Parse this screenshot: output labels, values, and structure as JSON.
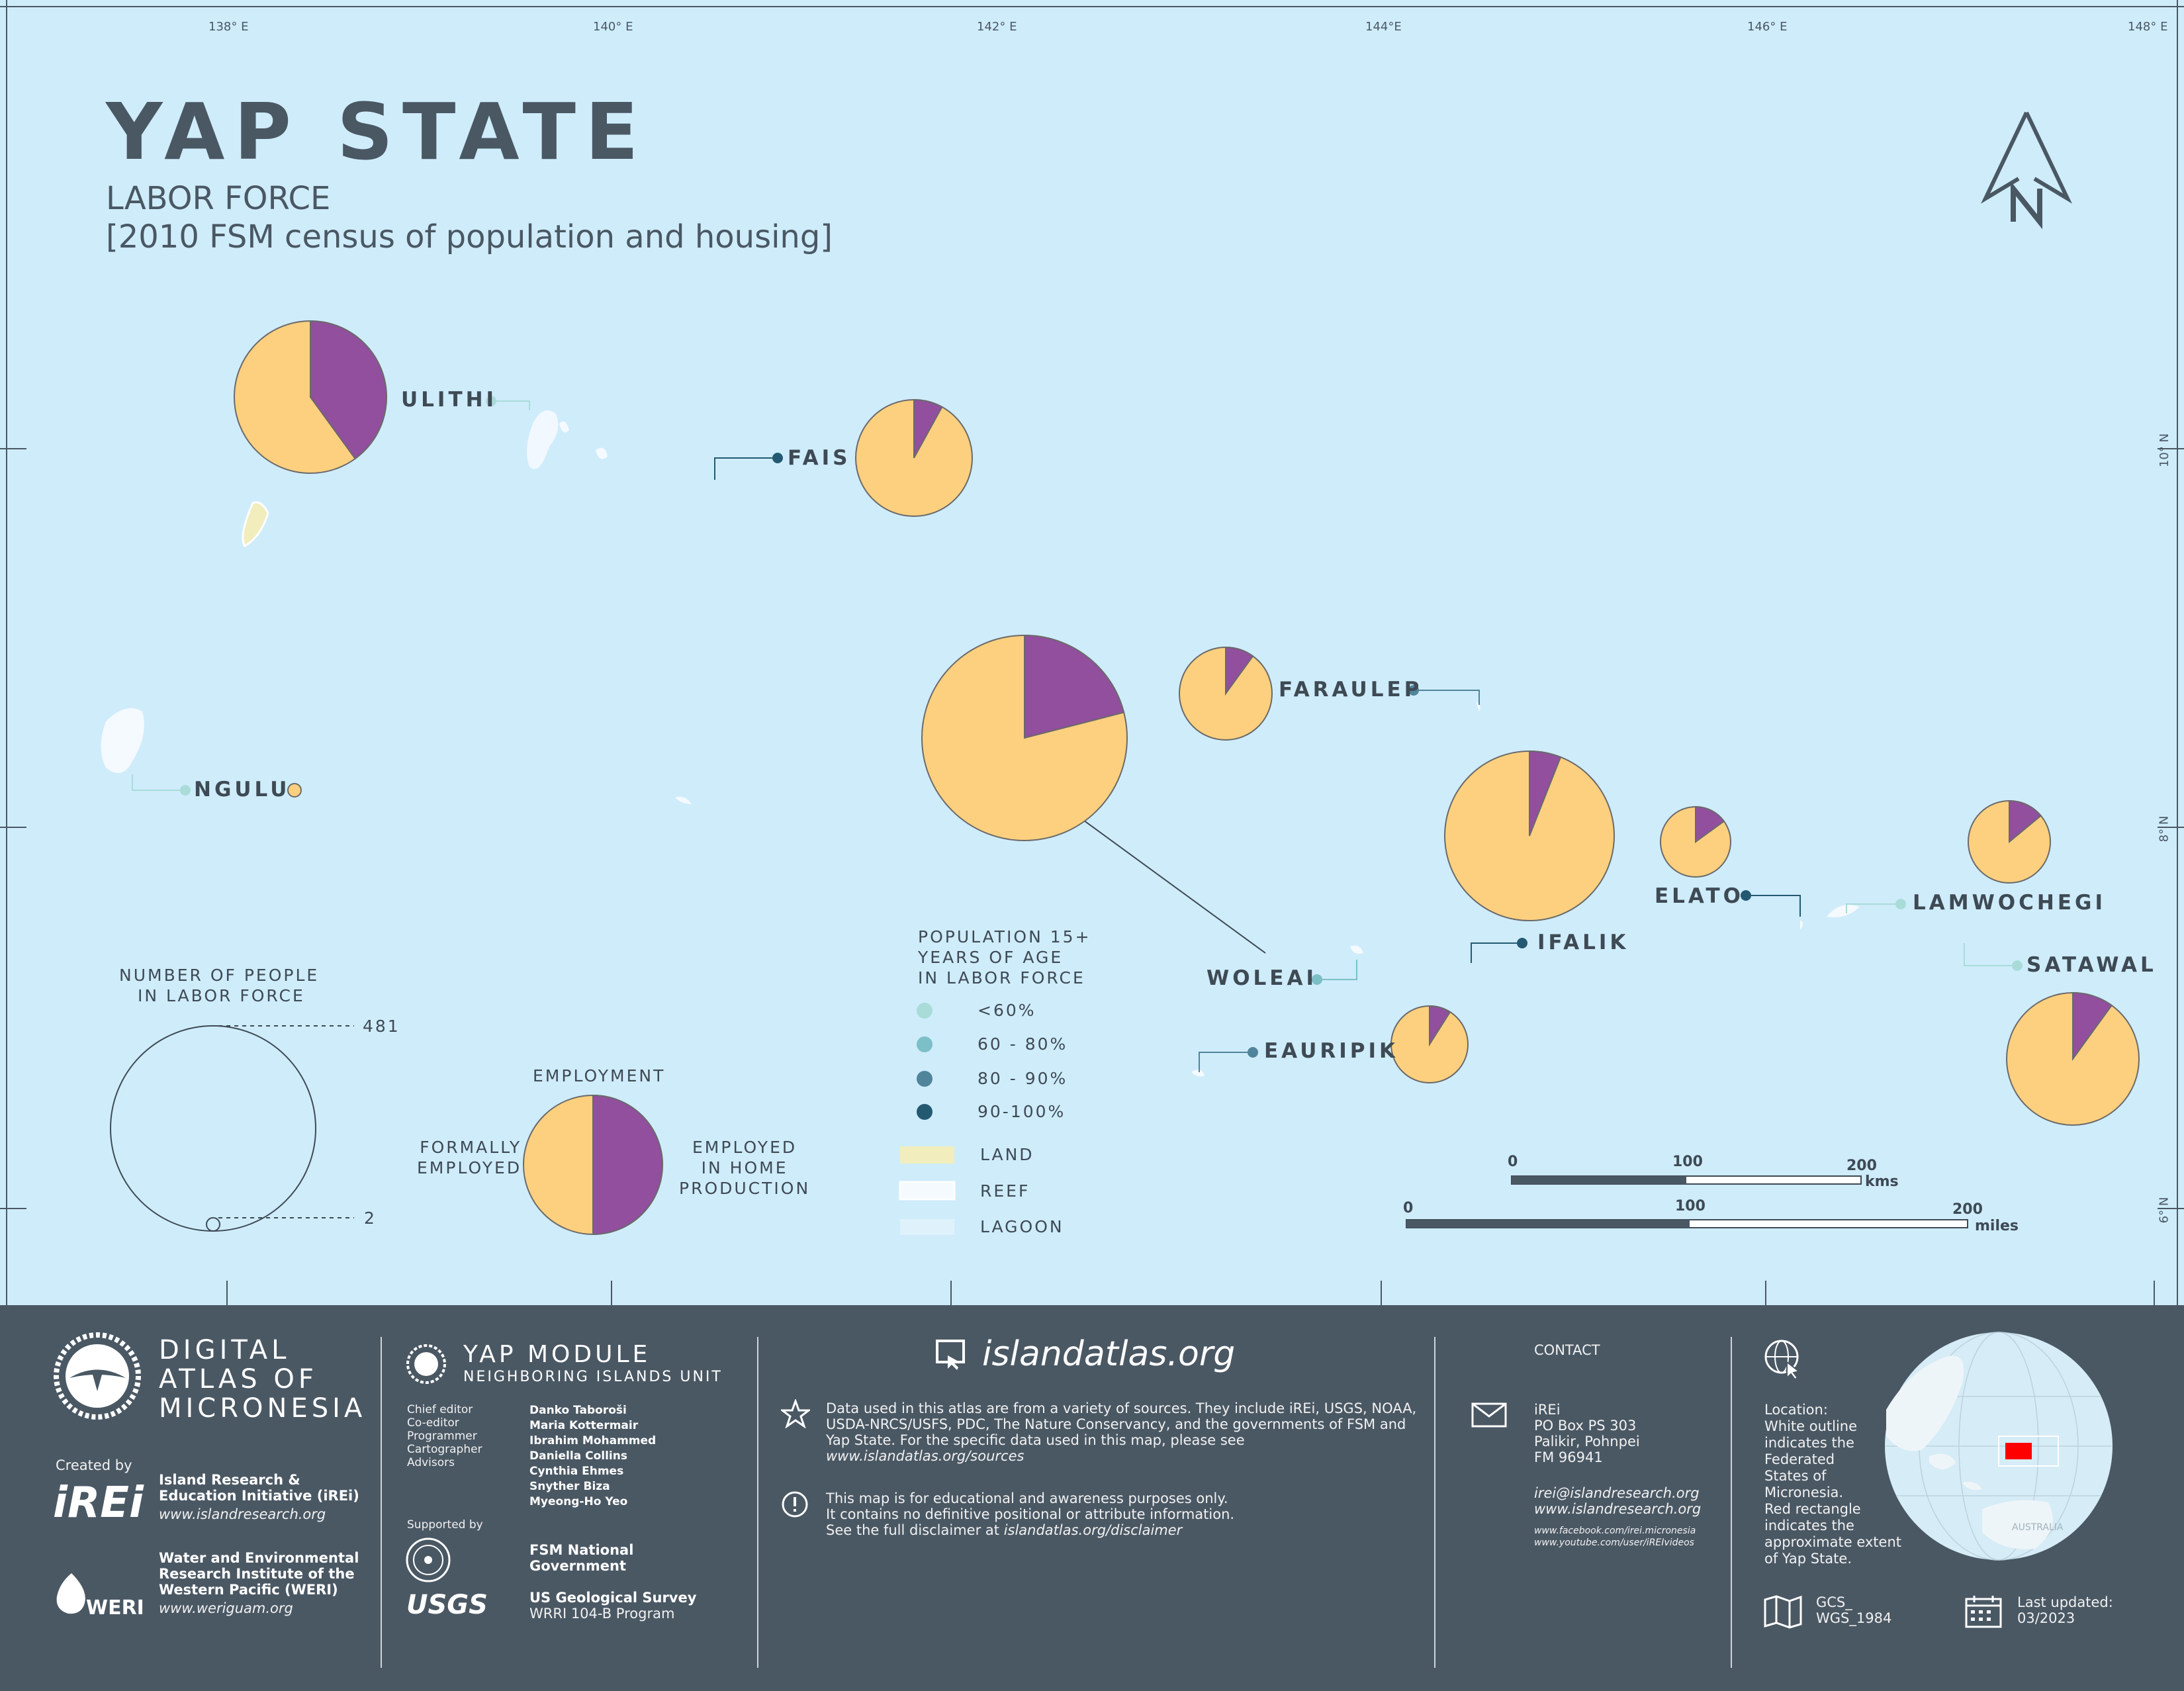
{
  "title": "YAP STATE",
  "subtitle": "LABOR FORCE",
  "subtitle2": "[2010 FSM census of population and housing]",
  "north_arrow": {
    "label": "N",
    "icon": "north-arrow-icon"
  },
  "graticule": {
    "longitudes": [
      "138° E",
      "140° E",
      "142° E",
      "144°E",
      "146° E",
      "148° E"
    ],
    "latitudes": [
      "10° N",
      "8° N",
      "6° N"
    ]
  },
  "colors": {
    "ocean": "#cfecfb",
    "formally_employed": "#fdd07f",
    "employed_home_production": "#914f9e",
    "footer": "#4a5864",
    "inset_extent": "#ff0000"
  },
  "islands": [
    {
      "name": "ULITHI",
      "labor_force_rate_class": "<60%",
      "formally_employed_share": 0.6
    },
    {
      "name": "FAIS",
      "labor_force_rate_class": "90-100%",
      "formally_employed_share": 0.92
    },
    {
      "name": "NGULU",
      "labor_force_rate_class": "<60%",
      "formally_employed_share": 1.0
    },
    {
      "name": "FARAULEP",
      "labor_force_rate_class": "80 - 90%",
      "formally_employed_share": 0.9
    },
    {
      "name": "WOLEAI",
      "labor_force_rate_class": "60 - 80%",
      "formally_employed_share": 0.79
    },
    {
      "name": "IFALIK",
      "labor_force_rate_class": "90-100%",
      "formally_employed_share": 0.94
    },
    {
      "name": "ELATO",
      "labor_force_rate_class": "90-100%",
      "formally_employed_share": 0.85
    },
    {
      "name": "LAMWOCHEGI",
      "labor_force_rate_class": "<60%",
      "formally_employed_share": 0.86
    },
    {
      "name": "SATAWAL",
      "labor_force_rate_class": "60 - 80%",
      "formally_employed_share": 0.9
    },
    {
      "name": "EAURIPIK",
      "labor_force_rate_class": "80 - 90%",
      "formally_employed_share": 0.91
    }
  ],
  "legend": {
    "size_title_1": "NUMBER OF PEOPLE",
    "size_title_2": "IN LABOR FORCE",
    "size_max": "481",
    "size_min": "2",
    "employment_title": "EMPLOYMENT",
    "formally_1": "FORMALLY",
    "formally_2": "EMPLOYED",
    "home_1": "EMPLOYED",
    "home_2": "IN HOME",
    "home_3": "PRODUCTION",
    "pop_title_1": "POPULATION 15+",
    "pop_title_2": "YEARS OF AGE",
    "pop_title_3": "IN LABOR FORCE",
    "classes": [
      {
        "label": "<60%",
        "color": "#a9dcd9"
      },
      {
        "label": "60 - 80%",
        "color": "#7dbfc7"
      },
      {
        "label": "80 - 90%",
        "color": "#50849b"
      },
      {
        "label": "90-100%",
        "color": "#235a72"
      }
    ],
    "land": "LAND",
    "reef": "REEF",
    "lagoon": "LAGOON"
  },
  "scale": {
    "km_0": "0",
    "km_100": "100",
    "km_200": "200",
    "km_unit": "kms",
    "mi_0": "0",
    "mi_100": "100",
    "mi_200": "200",
    "mi_unit": "miles"
  },
  "footer": {
    "atlas_1": "DIGITAL",
    "atlas_2": "ATLAS OF",
    "atlas_3": "MICRONESIA",
    "created_by": "Created by",
    "irei_logo": "iREi",
    "irei_name_1": "Island Research &",
    "irei_name_2": "Education Initiative (iREi)",
    "irei_url": "www.islandresearch.org",
    "weri_logo": "WERI",
    "weri_name_1": "Water and Environmental",
    "weri_name_2": "Research Institute of the",
    "weri_name_3": "Western Pacific (WERI)",
    "weri_url": "www.weriguam.org",
    "module_title": "YAP MODULE",
    "module_sub": "NEIGHBORING ISLANDS UNIT",
    "roles": [
      "Chief editor",
      "Co-editor",
      "Programmer",
      "Cartographer",
      "Advisors"
    ],
    "people": [
      "Danko Taboroši",
      "Maria Kottermair",
      "Ibrahim Mohammed",
      "Daniella Collins",
      "Cynthia Ehmes",
      "Snyther Biza",
      "Myeong-Ho Yeo"
    ],
    "supported_by": "Supported by",
    "fsm_1": "FSM National",
    "fsm_2": "Government",
    "usgs_logo": "USGS",
    "usgs_1": "US Geological Survey",
    "usgs_2": "WRRI 104-B Program",
    "site": "islandatlas.org",
    "data_note_1": "Data used in this atlas are from a variety of sources. They include iREi, USGS, NOAA,",
    "data_note_2": "USDA-NRCS/USFS, PDC, The Nature Conservancy, and the governments of FSM and",
    "data_note_3": "Yap State. For the specific data used in this map, please see",
    "data_note_4": "www.islandatlas.org/sources",
    "disc_1": "This map is for educational and awareness purposes only.",
    "disc_2": "It contains no definitive positional or attribute information.",
    "disc_3a": "See the full disclaimer at ",
    "disc_3b": "islandatlas.org/disclaimer",
    "contact": "CONTACT",
    "addr": [
      "iREi",
      "PO Box PS 303",
      "Palikir, Pohnpei",
      "FM 96941"
    ],
    "email": "irei@islandresearch.org",
    "web": "www.islandresearch.org",
    "facebook": "www.facebook.com/irei.micronesia",
    "youtube": "www.youtube.com/user/iREIvideos",
    "location_note": [
      "Location:",
      "White outline",
      "indicates the",
      "Federated",
      "States of",
      "Micronesia.",
      "Red rectangle",
      "indicates the",
      "approximate extent",
      "of Yap State."
    ],
    "projection_1": "GCS_",
    "projection_2": "WGS_1984",
    "updated_1": "Last updated:",
    "updated_2": "03/2023",
    "globe_label": "AUSTRALIA"
  }
}
